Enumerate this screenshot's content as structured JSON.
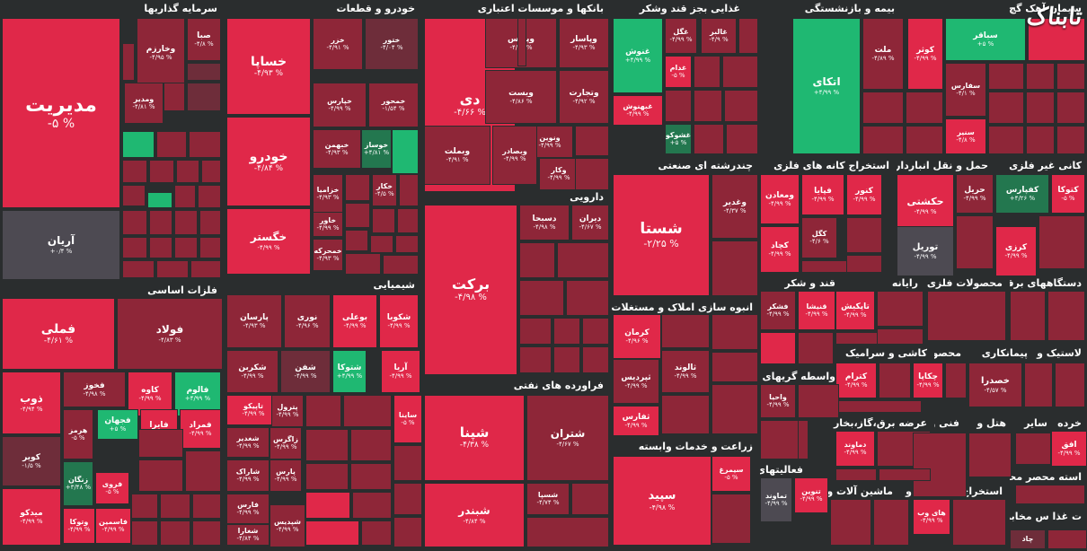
{
  "colors": {
    "red": "#e02849",
    "red_mid": "#b8283f",
    "red_dark": "#8e2638",
    "red_dim": "#6e2d3a",
    "grey": "#4d4a52",
    "green": "#1fb872",
    "green_light": "#3ddc84",
    "green_dark": "#23774f",
    "bg": "#2a2d2e"
  },
  "watermark": "تابناک",
  "sectors": [
    {
      "title": "سرمایه گذاریها"
    },
    {
      "title": "خودرو و قطعات"
    },
    {
      "title": "بانکها و موسسات اعتباری"
    },
    {
      "title": "غذایی بجز قند وشکر"
    },
    {
      "title": "بیمه و بازنشستگی"
    },
    {
      "title": "سیمان آهک گچ"
    },
    {
      "title": "فلزات اساسی"
    },
    {
      "title": "شیمیایی"
    },
    {
      "title": "دارویی"
    },
    {
      "title": "فراورده های نفتی"
    },
    {
      "title": "چندرشته ای صنعتی"
    },
    {
      "title": "استخراج کانه های فلزی"
    },
    {
      "title": "حمل و نقل انبارداری و"
    },
    {
      "title": "کانی غیر فلزی"
    },
    {
      "title": "انبوه سازی املاک و مستغلات"
    },
    {
      "title": "قند و شکر"
    },
    {
      "title": "رایانه"
    },
    {
      "title": "محصولات فلزی"
    },
    {
      "title": "دستگاههای برقی"
    },
    {
      "title": "واسطه گریهای"
    },
    {
      "title": "کاشی و سرامیک"
    },
    {
      "title": "محصولات"
    },
    {
      "title": "پیمانکاری"
    },
    {
      "title": "لاستیک و"
    },
    {
      "title": "زراعت و خدمات وابسته"
    },
    {
      "title": "عرضه برق،گاز،بخار"
    },
    {
      "title": "فنی و"
    },
    {
      "title": "هتل و"
    },
    {
      "title": "سایر"
    },
    {
      "title": "خرده"
    },
    {
      "title": "فعالیتهای کمکی به"
    },
    {
      "title": "ماشین آلات و"
    },
    {
      "title": "اطلاعات و"
    },
    {
      "title": "استخراج"
    },
    {
      "title": "استه محصر محصولا"
    },
    {
      "title": "ت غذا س مخابرات"
    }
  ],
  "tiles": [
    {
      "name": "مدیریت",
      "pct": "-۵ %"
    },
    {
      "name": "آریان",
      "pct": "+۰/۴ %"
    },
    {
      "name": "وخارزم",
      "pct": "-۴/۹۵ %"
    },
    {
      "name": "صبا",
      "pct": "-۴/۸ %"
    },
    {
      "name": "ومدیر",
      "pct": "-۴/۸۱ %"
    },
    {
      "name": "خساپا",
      "pct": "-۴/۹۳ %"
    },
    {
      "name": "خزر",
      "pct": "-۴/۹۱ %"
    },
    {
      "name": "ختور",
      "pct": "-۴/۰۴ %"
    },
    {
      "name": "خپارس",
      "pct": "-۴/۹۹ %"
    },
    {
      "name": "خمحور",
      "pct": "-۱/۵۴ %"
    },
    {
      "name": "خودرو",
      "pct": "-۴/۸۴ %"
    },
    {
      "name": "خبهمن",
      "pct": "-۴/۹۳ %"
    },
    {
      "name": "خوساز",
      "pct": "+۴/۸۱ %"
    },
    {
      "name": "خزامیا",
      "pct": "-۴/۹۳ %"
    },
    {
      "name": "خکار",
      "pct": "-۴/۵ %"
    },
    {
      "name": "خاور",
      "pct": "-۴/۹۹ %"
    },
    {
      "name": "خگستر",
      "pct": "-۴/۹۹ %"
    },
    {
      "name": "خمحرکه",
      "pct": "-۴/۹۳ %"
    },
    {
      "name": "دی",
      "pct": "-۴/۶۶ %"
    },
    {
      "name": "وپارس",
      "pct": "-۴/۶۶ %"
    },
    {
      "name": "وپاسار",
      "pct": "-۴/۹۳ %"
    },
    {
      "name": "ویست",
      "pct": "-۴/۸۶ %"
    },
    {
      "name": "وتجارت",
      "pct": "-۴/۹۲ %"
    },
    {
      "name": "ونوین",
      "pct": "-۴/۹۹ %"
    },
    {
      "name": "وبملت",
      "pct": "-۴/۹۱ %"
    },
    {
      "name": "وبصادر",
      "pct": "-۴/۹۹ %"
    },
    {
      "name": "وکار",
      "pct": "-۴/۹۹ %"
    },
    {
      "name": "غگل",
      "pct": "-۴/۹۹ %"
    },
    {
      "name": "غالبر",
      "pct": "-۴/۹ %"
    },
    {
      "name": "غنوش",
      "pct": "+۴/۹۹ %"
    },
    {
      "name": "غدام",
      "pct": "-۵ %"
    },
    {
      "name": "غبهنوش",
      "pct": "-۴/۹۹ %"
    },
    {
      "name": "غشوکو",
      "pct": "+۵ %"
    },
    {
      "name": "اتکای",
      "pct": "+۴/۹۹ %"
    },
    {
      "name": "ملت",
      "pct": "-۴/۸۹ %"
    },
    {
      "name": "کوثر",
      "pct": "-۴/۹۹ %"
    },
    {
      "name": "سباقر",
      "pct": "+۵ %"
    },
    {
      "name": "سفارس",
      "pct": "-۴/۱ %"
    },
    {
      "name": "سنیر",
      "pct": "-۴/۸ %"
    },
    {
      "name": "فملی",
      "pct": "-۴/۶۱ %"
    },
    {
      "name": "فولاد",
      "pct": "-۴/۸۳ %"
    },
    {
      "name": "ذوب",
      "pct": "-۴/۹۴ %"
    },
    {
      "name": "فخوز",
      "pct": "-۴/۹۸ %"
    },
    {
      "name": "کاوه",
      "pct": "-۴/۹۹ %"
    },
    {
      "name": "فالوم",
      "pct": "+۴/۹۹ %"
    },
    {
      "name": "هرمز",
      "pct": "-۵ %"
    },
    {
      "name": "فجهان",
      "pct": "+۵ %"
    },
    {
      "name": "فایرا",
      "pct": "-۴/۹۹ %"
    },
    {
      "name": "فمراد",
      "pct": "-۴/۹۹ %"
    },
    {
      "name": "کویر",
      "pct": "-۱/۵ %"
    },
    {
      "name": "زنگان",
      "pct": "+۳/۴۸ %"
    },
    {
      "name": "فروی",
      "pct": "-۵ %"
    },
    {
      "name": "میدکو",
      "pct": "-۴/۹۹ %"
    },
    {
      "name": "وتوکا",
      "pct": "-۴/۹۹ %"
    },
    {
      "name": "فاسمین",
      "pct": "-۴/۹۹ %"
    },
    {
      "name": "پارسان",
      "pct": "-۴/۹۳ %"
    },
    {
      "name": "نوری",
      "pct": "-۴/۹۶ %"
    },
    {
      "name": "بوعلی",
      "pct": "-۴/۹۹ %"
    },
    {
      "name": "شکوبا",
      "pct": "-۴/۹۹ %"
    },
    {
      "name": "شکربن",
      "pct": "-۴/۹۹ %"
    },
    {
      "name": "شفن",
      "pct": "-۴/۹۹ %"
    },
    {
      "name": "شتوکا",
      "pct": "+۴/۹۹ %"
    },
    {
      "name": "آریا",
      "pct": "-۴/۹۹ %"
    },
    {
      "name": "تاپیکو",
      "pct": "-۴/۹۹ %"
    },
    {
      "name": "پترول",
      "pct": "-۴/۹۹ %"
    },
    {
      "name": "شغدیر",
      "pct": "-۴/۹۹ %"
    },
    {
      "name": "زاگرس",
      "pct": "-۴/۹۹ %"
    },
    {
      "name": "شاراک",
      "pct": "-۴/۹۹ %"
    },
    {
      "name": "پارس",
      "pct": "-۴/۹۹ %"
    },
    {
      "name": "فارس",
      "pct": "-۴/۹۹ %"
    },
    {
      "name": "شغارا",
      "pct": "-۴/۸۴ %"
    },
    {
      "name": "شپدیس",
      "pct": "-۴/۹۹ %"
    },
    {
      "name": "ساینا",
      "pct": "-۵ %"
    },
    {
      "name": "برکت",
      "pct": "-۴/۹۸ %"
    },
    {
      "name": "دسبحا",
      "pct": "-۴/۹۸ %"
    },
    {
      "name": "دیران",
      "pct": "-۴/۶۷ %"
    },
    {
      "name": "شپنا",
      "pct": "-۴/۳۸ %"
    },
    {
      "name": "شتران",
      "pct": "-۴/۶۷ %"
    },
    {
      "name": "شبندر",
      "pct": "-۴/۸۴ %"
    },
    {
      "name": "شسپا",
      "pct": "-۴/۷۴ %"
    },
    {
      "name": "شستا",
      "pct": "-۲/۲۵ %"
    },
    {
      "name": "وغدیر",
      "pct": "-۴/۳۷ %"
    },
    {
      "name": "ومعادن",
      "pct": "-۴/۹۹ %"
    },
    {
      "name": "فپایا",
      "pct": "-۴/۹۹ %"
    },
    {
      "name": "کنور",
      "pct": "-۴/۹۹ %"
    },
    {
      "name": "کگل",
      "pct": "-۴/۶ %"
    },
    {
      "name": "کچاد",
      "pct": "-۴/۹۹ %"
    },
    {
      "name": "حکشتی",
      "pct": "-۴/۹۹ %"
    },
    {
      "name": "حریل",
      "pct": "-۴/۹۹ %"
    },
    {
      "name": "کفپارس",
      "pct": "+۴/۲۶ %"
    },
    {
      "name": "کتوکا",
      "pct": "-۵ %"
    },
    {
      "name": "توریل",
      "pct": "-۴/۹۹ %"
    },
    {
      "name": "کرزی",
      "pct": "-۴/۹۹ %"
    },
    {
      "name": "کرمان",
      "pct": "-۴/۹۶ %"
    },
    {
      "name": "ثالوند",
      "pct": "-۴/۹۹ %"
    },
    {
      "name": "ثپردیس",
      "pct": "-۴/۹۹ %"
    },
    {
      "name": "ثفارس",
      "pct": "-۴/۹۹ %"
    },
    {
      "name": "فشکر",
      "pct": "-۴/۹۹ %"
    },
    {
      "name": "قنیشا",
      "pct": "-۴/۹۹ %"
    },
    {
      "name": "تاپکیش",
      "pct": "-۴/۹۹ %"
    },
    {
      "name": "کترام",
      "pct": "-۴/۹۹ %"
    },
    {
      "name": "چکاپا",
      "pct": "-۴/۹۹ %"
    },
    {
      "name": "خصدرا",
      "pct": "-۴/۵۷ %"
    },
    {
      "name": "واحیا",
      "pct": "-۴/۹۹ %"
    },
    {
      "name": "سپید",
      "pct": "-۴/۹۸ %"
    },
    {
      "name": "سیمرغ",
      "pct": "-۵ %"
    },
    {
      "name": "دماوند",
      "pct": "-۴/۹۹ %"
    },
    {
      "name": "تنوین",
      "pct": "-۴/۹۹ %"
    },
    {
      "name": "تماوند",
      "pct": "-۴/۹۹ %"
    },
    {
      "name": "افق",
      "pct": "-۴/۹۹ %"
    },
    {
      "name": "های وب",
      "pct": "-۴/۹۹ %"
    },
    {
      "name": "چاد",
      "pct": ""
    }
  ]
}
